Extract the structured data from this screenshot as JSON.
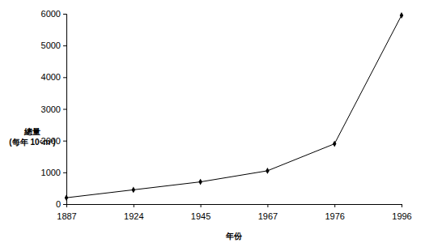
{
  "chart_data": {
    "type": "line",
    "y_label": "總量\n(每年 10⁶m³)",
    "x_label": "年份",
    "categories": [
      "1887",
      "1924",
      "1945",
      "1967",
      "1976",
      "1996"
    ],
    "values": [
      200,
      450,
      700,
      1050,
      1900,
      5950
    ],
    "color": "#000000",
    "marker": "diamond",
    "line_style": "solid",
    "ylim": [
      0,
      6000
    ],
    "yticks": [
      0,
      1000,
      2000,
      3000,
      4000,
      5000,
      6000
    ],
    "grid": false
  }
}
